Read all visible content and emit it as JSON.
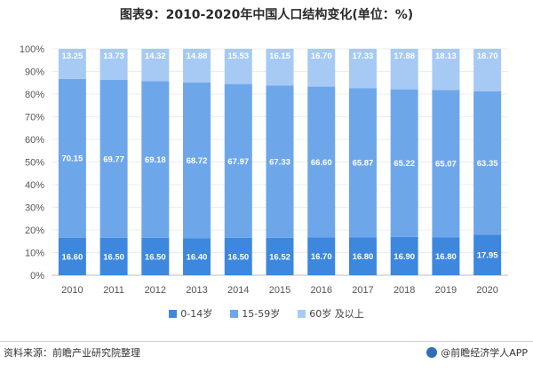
{
  "chart_data": {
    "type": "bar",
    "stacked": true,
    "title": "图表9：2010-2020年中国人口结构变化(单位：%)",
    "categories": [
      "2010",
      "2011",
      "2012",
      "2013",
      "2014",
      "2015",
      "2016",
      "2017",
      "2018",
      "2019",
      "2020"
    ],
    "series": [
      {
        "name": "0-14岁",
        "color": "#3d87df",
        "values": [
          16.6,
          16.5,
          16.5,
          16.4,
          16.5,
          16.52,
          16.7,
          16.8,
          16.9,
          16.8,
          17.95
        ]
      },
      {
        "name": "15-59岁",
        "color": "#6ea6ea",
        "values": [
          70.15,
          69.77,
          69.18,
          68.72,
          67.97,
          67.33,
          66.6,
          65.87,
          65.22,
          65.07,
          63.35
        ]
      },
      {
        "name": "60岁及以上",
        "color": "#a6caf3",
        "values": [
          13.25,
          13.73,
          14.32,
          14.88,
          15.53,
          16.15,
          16.7,
          17.33,
          17.88,
          18.13,
          18.7
        ]
      }
    ],
    "data_labels": [
      [
        "16.60",
        "16.50",
        "16.50",
        "16.40",
        "16.50",
        "16.52",
        "16.70",
        "16.80",
        "16.90",
        "16.80",
        "17.95"
      ],
      [
        "70.15",
        "69.77",
        "69.18",
        "68.72",
        "67.97",
        "67.33",
        "66.60",
        "65.87",
        "65.22",
        "65.07",
        "63.35"
      ],
      [
        "13.25",
        "13.73",
        "14.32",
        "14.88",
        "15.53",
        "16.15",
        "16.70",
        "17.33",
        "17.88",
        "18.13",
        "18.70"
      ]
    ],
    "yticks": [
      "0%",
      "10%",
      "20%",
      "30%",
      "40%",
      "50%",
      "60%",
      "70%",
      "80%",
      "90%",
      "100%"
    ],
    "ylim": [
      0,
      100
    ],
    "grid": true,
    "legend_position": "bottom"
  },
  "legend": [
    {
      "label": "0-14岁",
      "color": "#3d87df"
    },
    {
      "label": "15-59岁",
      "color": "#6ea6ea"
    },
    {
      "label": "60岁 及以上",
      "color": "#a6caf3"
    }
  ],
  "footer": {
    "source": "资料来源：前瞻产业研究院整理",
    "brand": "@前瞻经济学人APP"
  }
}
